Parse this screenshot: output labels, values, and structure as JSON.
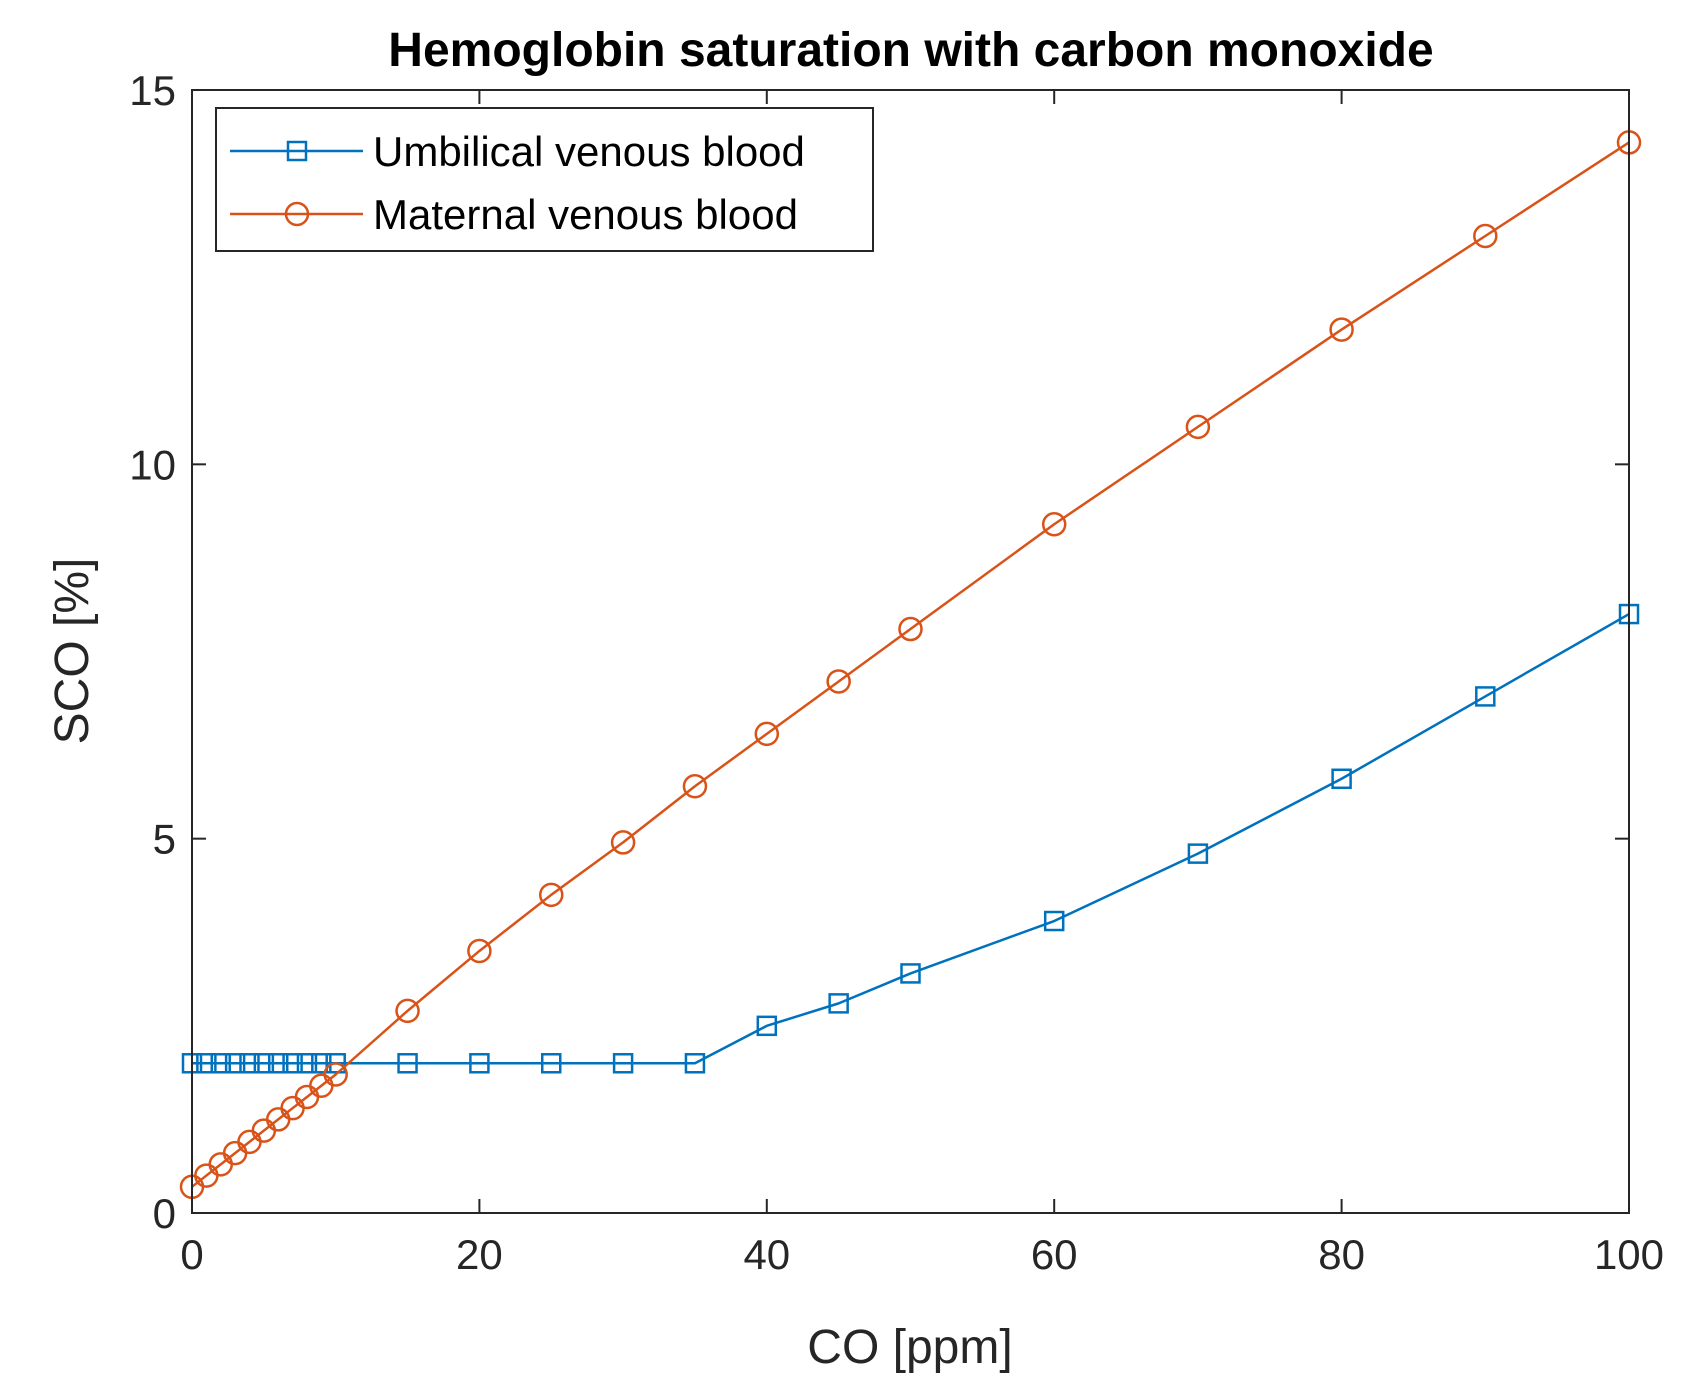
{
  "chart_data": {
    "type": "line",
    "title": "Hemoglobin saturation with carbon monoxide",
    "xlabel": "CO [ppm]",
    "ylabel": "SCO [%]",
    "xlim": [
      0,
      100
    ],
    "ylim": [
      0,
      15
    ],
    "xticks": [
      0,
      20,
      40,
      60,
      80,
      100
    ],
    "yticks": [
      0,
      5,
      10,
      15
    ],
    "grid": false,
    "legend_position": "top-left",
    "series": [
      {
        "name": "Umbilical venous blood",
        "color": "#0072BD",
        "marker": "square",
        "x": [
          0,
          1,
          2,
          3,
          4,
          5,
          6,
          7,
          8,
          9,
          10,
          15,
          20,
          25,
          30,
          35,
          40,
          45,
          50,
          60,
          70,
          80,
          90,
          100
        ],
        "y": [
          2.0,
          2.0,
          2.0,
          2.0,
          2.0,
          2.0,
          2.0,
          2.0,
          2.0,
          2.0,
          2.0,
          2.0,
          2.0,
          2.0,
          2.0,
          2.0,
          2.5,
          2.8,
          3.2,
          3.9,
          4.8,
          5.8,
          6.9,
          8.0
        ]
      },
      {
        "name": "Maternal venous blood",
        "color": "#D95319",
        "marker": "circle",
        "x": [
          0,
          1,
          2,
          3,
          4,
          5,
          6,
          7,
          8,
          9,
          10,
          15,
          20,
          25,
          30,
          35,
          40,
          45,
          50,
          60,
          70,
          80,
          90,
          100
        ],
        "y": [
          0.35,
          0.5,
          0.65,
          0.8,
          0.95,
          1.1,
          1.25,
          1.4,
          1.55,
          1.7,
          1.85,
          2.7,
          3.5,
          4.25,
          4.95,
          5.7,
          6.4,
          7.1,
          7.8,
          9.2,
          10.5,
          11.8,
          13.05,
          14.3
        ]
      }
    ]
  }
}
